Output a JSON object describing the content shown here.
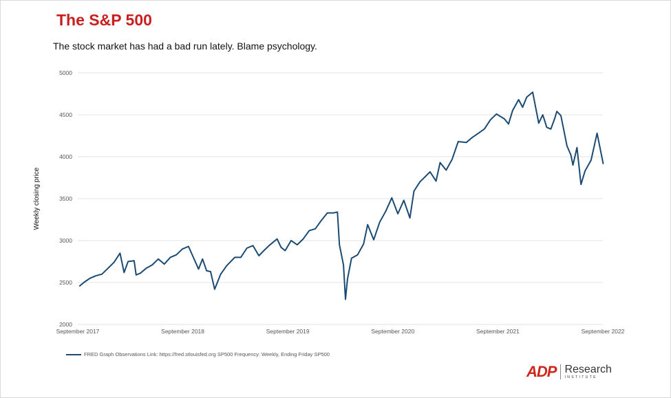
{
  "title": "The S&P 500",
  "subtitle": "The stock market has had a bad run lately. Blame psychology.",
  "legend_text": "FRED Graph Observations Link: https://fred.stlouisfed.org SP500 Frequency: Weekly, Ending Friday SP500",
  "logo": {
    "brand": "ADP",
    "name": "Research",
    "sub": "INSTITUTE"
  },
  "colors": {
    "title": "#c8201e",
    "line": "#1a4a72",
    "grid": "#e3e3e3"
  },
  "chart_data": {
    "type": "line",
    "title": "The S&P 500",
    "ylabel": "Weekly closing price",
    "xlabel": "",
    "ylim": [
      2000,
      5000
    ],
    "yticks": [
      2000,
      2500,
      3000,
      3500,
      4000,
      4500,
      5000
    ],
    "xlim": [
      "2017-09",
      "2022-09"
    ],
    "xtick_labels": [
      "September 2017",
      "September 2018",
      "September 2019",
      "September 2020",
      "September 2021",
      "September 2022"
    ],
    "grid": true,
    "legend_position": "bottom-left",
    "series": [
      {
        "name": "SP500",
        "points": [
          [
            "2017-09-08",
            2460
          ],
          [
            "2017-09-22",
            2500
          ],
          [
            "2017-10-13",
            2550
          ],
          [
            "2017-11-03",
            2580
          ],
          [
            "2017-11-24",
            2600
          ],
          [
            "2017-12-15",
            2670
          ],
          [
            "2018-01-05",
            2740
          ],
          [
            "2018-01-26",
            2850
          ],
          [
            "2018-02-09",
            2620
          ],
          [
            "2018-02-23",
            2750
          ],
          [
            "2018-03-16",
            2760
          ],
          [
            "2018-03-23",
            2590
          ],
          [
            "2018-04-06",
            2610
          ],
          [
            "2018-04-27",
            2670
          ],
          [
            "2018-05-18",
            2710
          ],
          [
            "2018-06-08",
            2780
          ],
          [
            "2018-06-29",
            2720
          ],
          [
            "2018-07-20",
            2800
          ],
          [
            "2018-08-10",
            2830
          ],
          [
            "2018-08-31",
            2900
          ],
          [
            "2018-09-21",
            2930
          ],
          [
            "2018-10-12",
            2770
          ],
          [
            "2018-10-26",
            2660
          ],
          [
            "2018-11-09",
            2780
          ],
          [
            "2018-11-23",
            2640
          ],
          [
            "2018-12-07",
            2630
          ],
          [
            "2018-12-21",
            2420
          ],
          [
            "2019-01-11",
            2600
          ],
          [
            "2019-02-01",
            2700
          ],
          [
            "2019-03-01",
            2800
          ],
          [
            "2019-03-22",
            2800
          ],
          [
            "2019-04-12",
            2910
          ],
          [
            "2019-05-03",
            2940
          ],
          [
            "2019-05-24",
            2820
          ],
          [
            "2019-06-07",
            2870
          ],
          [
            "2019-06-28",
            2940
          ],
          [
            "2019-07-26",
            3020
          ],
          [
            "2019-08-09",
            2920
          ],
          [
            "2019-08-23",
            2880
          ],
          [
            "2019-09-13",
            3000
          ],
          [
            "2019-10-04",
            2950
          ],
          [
            "2019-10-25",
            3020
          ],
          [
            "2019-11-15",
            3120
          ],
          [
            "2019-12-06",
            3140
          ],
          [
            "2019-12-27",
            3240
          ],
          [
            "2020-01-17",
            3330
          ],
          [
            "2020-02-07",
            3330
          ],
          [
            "2020-02-21",
            3340
          ],
          [
            "2020-02-28",
            2950
          ],
          [
            "2020-03-13",
            2710
          ],
          [
            "2020-03-20",
            2300
          ],
          [
            "2020-03-27",
            2540
          ],
          [
            "2020-04-10",
            2790
          ],
          [
            "2020-05-01",
            2830
          ],
          [
            "2020-05-22",
            2960
          ],
          [
            "2020-06-05",
            3190
          ],
          [
            "2020-06-26",
            3010
          ],
          [
            "2020-07-17",
            3220
          ],
          [
            "2020-08-07",
            3350
          ],
          [
            "2020-08-28",
            3510
          ],
          [
            "2020-09-18",
            3320
          ],
          [
            "2020-10-09",
            3480
          ],
          [
            "2020-10-30",
            3270
          ],
          [
            "2020-11-13",
            3590
          ],
          [
            "2020-12-04",
            3700
          ],
          [
            "2021-01-08",
            3820
          ],
          [
            "2021-01-29",
            3710
          ],
          [
            "2021-02-12",
            3930
          ],
          [
            "2021-03-05",
            3840
          ],
          [
            "2021-03-26",
            3970
          ],
          [
            "2021-04-16",
            4180
          ],
          [
            "2021-05-14",
            4170
          ],
          [
            "2021-06-04",
            4230
          ],
          [
            "2021-06-25",
            4280
          ],
          [
            "2021-07-16",
            4330
          ],
          [
            "2021-08-06",
            4440
          ],
          [
            "2021-08-27",
            4510
          ],
          [
            "2021-09-24",
            4450
          ],
          [
            "2021-10-08",
            4390
          ],
          [
            "2021-10-22",
            4550
          ],
          [
            "2021-11-12",
            4680
          ],
          [
            "2021-11-26",
            4590
          ],
          [
            "2021-12-10",
            4710
          ],
          [
            "2021-12-31",
            4770
          ],
          [
            "2022-01-21",
            4400
          ],
          [
            "2022-02-04",
            4500
          ],
          [
            "2022-02-18",
            4350
          ],
          [
            "2022-03-04",
            4330
          ],
          [
            "2022-03-18",
            4460
          ],
          [
            "2022-03-25",
            4540
          ],
          [
            "2022-04-08",
            4490
          ],
          [
            "2022-04-29",
            4130
          ],
          [
            "2022-05-13",
            4020
          ],
          [
            "2022-05-20",
            3900
          ],
          [
            "2022-06-03",
            4110
          ],
          [
            "2022-06-17",
            3670
          ],
          [
            "2022-07-01",
            3830
          ],
          [
            "2022-07-22",
            3960
          ],
          [
            "2022-08-12",
            4280
          ],
          [
            "2022-09-02",
            3920
          ]
        ]
      }
    ]
  }
}
